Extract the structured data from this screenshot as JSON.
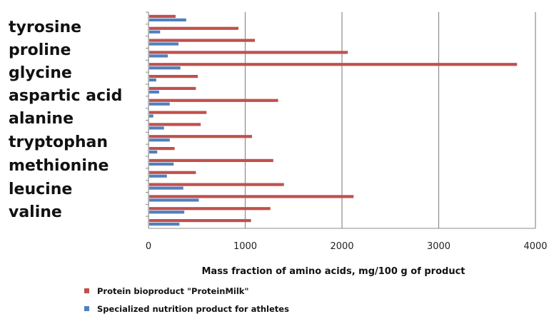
{
  "chart_data": {
    "type": "bar",
    "orientation": "horizontal",
    "category_labels": [
      "tyrosine",
      "proline",
      "glycine",
      "aspartic acid",
      "alanine",
      "tryptophan",
      "methionine",
      "leucine",
      "valine"
    ],
    "rows": [
      {
        "red": 280,
        "blue": 390
      },
      {
        "red": 930,
        "blue": 120
      },
      {
        "red": 1100,
        "blue": 310
      },
      {
        "red": 2060,
        "blue": 200
      },
      {
        "red": 3810,
        "blue": 330
      },
      {
        "red": 510,
        "blue": 80
      },
      {
        "red": 490,
        "blue": 110
      },
      {
        "red": 1340,
        "blue": 220
      },
      {
        "red": 600,
        "blue": 50
      },
      {
        "red": 540,
        "blue": 160
      },
      {
        "red": 1070,
        "blue": 220
      },
      {
        "red": 270,
        "blue": 90
      },
      {
        "red": 1290,
        "blue": 260
      },
      {
        "red": 490,
        "blue": 190
      },
      {
        "red": 1400,
        "blue": 360
      },
      {
        "red": 2120,
        "blue": 520
      },
      {
        "red": 1260,
        "blue": 370
      },
      {
        "red": 1060,
        "blue": 320
      }
    ],
    "series": [
      {
        "key": "red",
        "name": "Protein bioproduct \"ProteinMilk\"",
        "color": "#c0504d"
      },
      {
        "key": "blue",
        "name": "Specialized nutrition product for athletes",
        "color": "#4f81bd"
      }
    ],
    "xlim": [
      0,
      4000
    ],
    "xticks": [
      "0",
      "1000",
      "2000",
      "3000",
      "4000"
    ],
    "xtick_values": [
      0,
      1000,
      2000,
      3000,
      4000
    ],
    "xlabel": "Mass fraction of amino acids, mg/100 g of product",
    "grid": "vertical",
    "legend_position": "bottom-left"
  }
}
